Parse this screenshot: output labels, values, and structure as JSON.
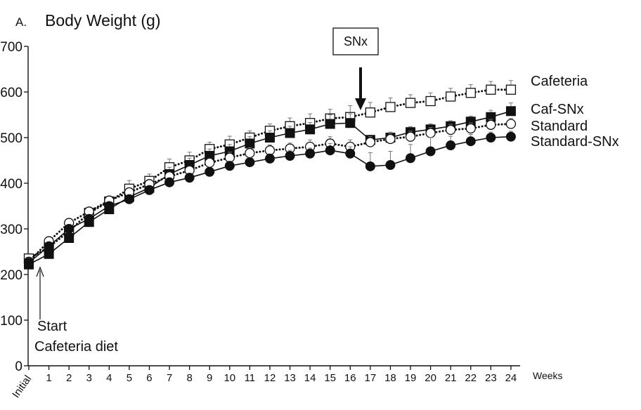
{
  "chart_data": {
    "type": "line",
    "panel_label": "A.",
    "title": "Body Weight (g)",
    "xlabel": "Weeks",
    "ylabel": "",
    "ylim": [
      0,
      700
    ],
    "y_ticks": [
      "0",
      "100",
      "200",
      "300",
      "400",
      "500",
      "600",
      "700"
    ],
    "categories": [
      "Initial",
      "1",
      "2",
      "3",
      "4",
      "5",
      "6",
      "7",
      "8",
      "9",
      "10",
      "11",
      "12",
      "13",
      "14",
      "15",
      "16",
      "17",
      "18",
      "19",
      "20",
      "21",
      "22",
      "23",
      "24"
    ],
    "grid": false,
    "series": [
      {
        "name": "Cafeteria",
        "line": "dotted",
        "marker": "open-square",
        "values": [
          235,
          260,
          295,
          335,
          360,
          388,
          405,
          435,
          450,
          475,
          485,
          500,
          515,
          525,
          532,
          542,
          545,
          555,
          567,
          576,
          580,
          590,
          598,
          605,
          605
        ],
        "error": [
          10,
          8,
          10,
          10,
          12,
          18,
          15,
          18,
          18,
          15,
          18,
          15,
          15,
          18,
          20,
          20,
          25,
          22,
          20,
          18,
          18,
          18,
          18,
          18,
          20
        ]
      },
      {
        "name": "Caf-SNx",
        "line": "solid",
        "marker": "filled-square",
        "values": [
          222,
          245,
          280,
          315,
          343,
          370,
          390,
          420,
          440,
          460,
          470,
          487,
          500,
          510,
          518,
          530,
          532,
          495,
          500,
          512,
          518,
          525,
          535,
          545,
          558
        ],
        "error": [
          10,
          8,
          10,
          10,
          10,
          12,
          12,
          15,
          15,
          15,
          15,
          15,
          15,
          15,
          15,
          20,
          20,
          10,
          12,
          12,
          12,
          12,
          12,
          15,
          18
        ]
      },
      {
        "name": "Standard",
        "line": "dotted",
        "marker": "open-circle",
        "values": [
          228,
          273,
          313,
          338,
          362,
          380,
          398,
          415,
          428,
          445,
          456,
          466,
          472,
          476,
          480,
          487,
          480,
          490,
          497,
          502,
          510,
          517,
          520,
          528,
          530
        ],
        "error": [
          8,
          8,
          8,
          8,
          8,
          10,
          10,
          10,
          10,
          10,
          12,
          12,
          12,
          12,
          15,
          15,
          15,
          12,
          12,
          12,
          12,
          12,
          12,
          12,
          12
        ]
      },
      {
        "name": "Standard-SNx",
        "line": "solid",
        "marker": "filled-circle",
        "values": [
          226,
          262,
          300,
          322,
          350,
          365,
          385,
          402,
          412,
          425,
          438,
          446,
          454,
          460,
          465,
          472,
          465,
          437,
          440,
          455,
          470,
          483,
          492,
          500,
          502
        ],
        "error": [
          8,
          8,
          8,
          8,
          8,
          10,
          10,
          10,
          10,
          10,
          10,
          10,
          10,
          12,
          12,
          15,
          15,
          30,
          30,
          30,
          30,
          20,
          15,
          12,
          12
        ]
      }
    ],
    "annotations": [
      {
        "label": "SNx",
        "style": "boxed-label-with-down-arrow",
        "x": "16"
      },
      {
        "label_lines": [
          "Start",
          "Cafeteria diet"
        ],
        "style": "up-arrow",
        "x": "Initial"
      }
    ]
  },
  "colors": {
    "ink": "#111111",
    "background": "#ffffff",
    "open_marker_fill": "#ffffff"
  }
}
